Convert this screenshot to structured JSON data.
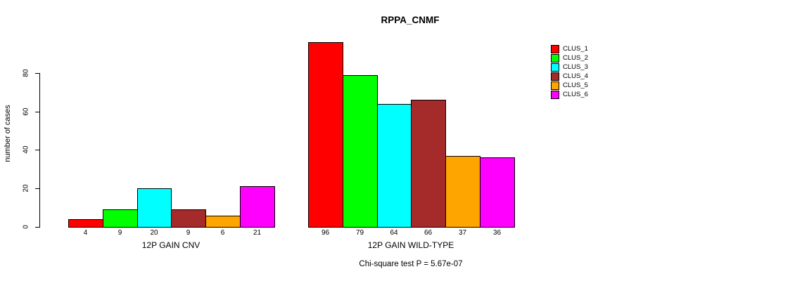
{
  "chart_data": {
    "type": "bar",
    "title": "RPPA_CNMF",
    "ylabel": "number of cases",
    "xlabel": "",
    "ylim": [
      0,
      80
    ],
    "yticks": [
      0,
      20,
      40,
      60,
      80
    ],
    "grid": false,
    "legend_position": "right",
    "legend": [
      "CLUS_1",
      "CLUS_2",
      "CLUS_3",
      "CLUS_4",
      "CLUS_5",
      "CLUS_6"
    ],
    "colors": [
      "#FF0000",
      "#00FF00",
      "#00FFFF",
      "#A52A2A",
      "#FFA500",
      "#FF00FF"
    ],
    "groups": [
      {
        "label": "12P GAIN CNV",
        "values": [
          4,
          9,
          20,
          9,
          6,
          21
        ]
      },
      {
        "label": "12P GAIN WILD-TYPE",
        "values": [
          96,
          79,
          64,
          66,
          37,
          36
        ]
      }
    ],
    "annotation": "Chi-square test P = 5.67e-07",
    "background_color": "#ffffff",
    "bar_border_color": "#000000"
  }
}
